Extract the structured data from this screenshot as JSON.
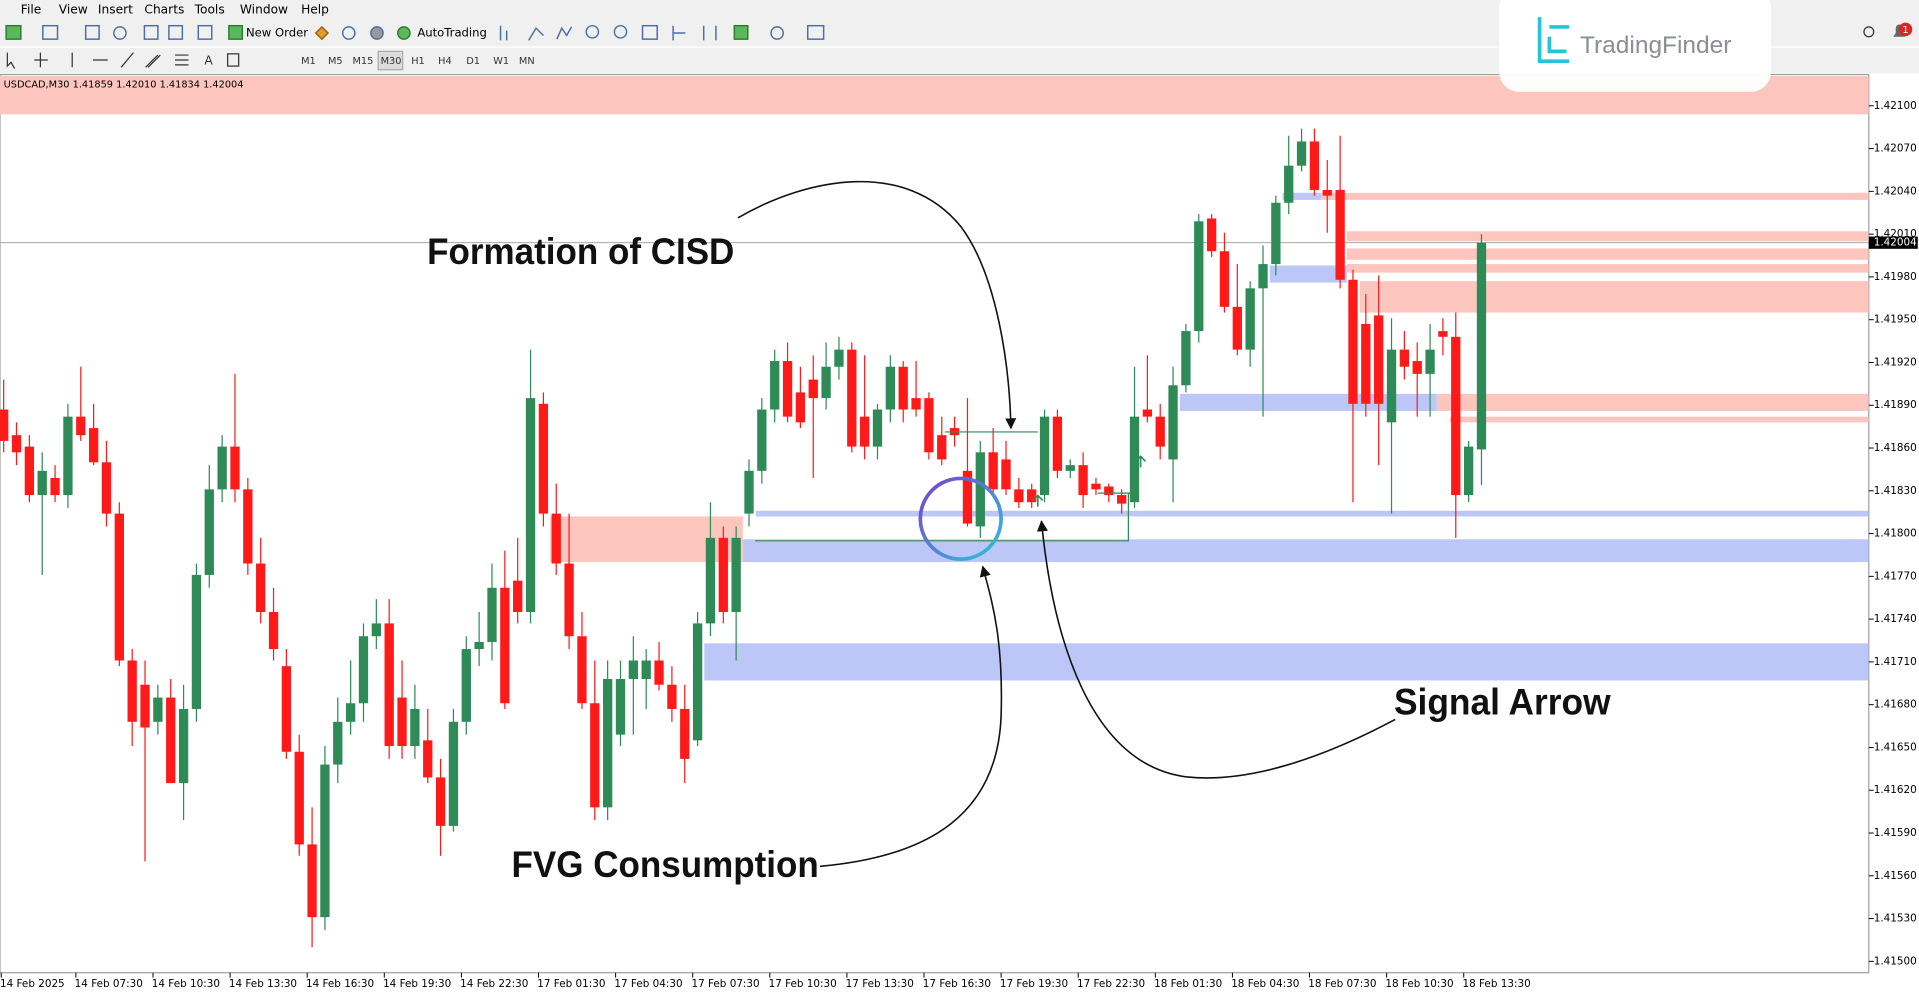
{
  "menu": [
    "File",
    "View",
    "Insert",
    "Charts",
    "Tools",
    "Window",
    "Help"
  ],
  "toolbar": {
    "new_order": "New Order",
    "autotrading": "AutoTrading",
    "timeframes": [
      "M1",
      "M5",
      "M15",
      "M30",
      "H1",
      "H4",
      "D1",
      "W1",
      "MN"
    ]
  },
  "logo": "TradingFinder",
  "notification_count": 1,
  "chart_data": {
    "type": "candlestick",
    "symbol_info": "USDCAD,M30  1.41859 1.42010 1.41834 1.42004",
    "up_color": "#2e8b57",
    "down_color": "#ff1a1a",
    "candles": {
      "open": [
        1.41887,
        1.41869,
        1.41861,
        1.41827,
        1.41839,
        1.41827,
        1.41882,
        1.41874,
        1.4185,
        1.41814,
        1.41711,
        1.41694,
        1.41668,
        1.41685,
        1.41625,
        1.41677,
        1.41771,
        1.41831,
        1.41861,
        1.41831,
        1.41779,
        1.41745,
        1.41707,
        1.41647,
        1.41582,
        1.41531,
        1.41638,
        1.41668,
        1.41681,
        1.41728,
        1.41737,
        1.41685,
        1.41651,
        1.41655,
        1.41629,
        1.41595,
        1.41668,
        1.41719,
        1.41724,
        1.41762,
        1.41767,
        1.41745,
        1.41891,
        1.41814,
        1.41779,
        1.41728,
        1.41681,
        1.41608,
        1.41659,
        1.41698,
        1.41698,
        1.41711,
        1.41694,
        1.41677,
        1.41655,
        1.41737,
        1.41797,
        1.41745,
        1.41814,
        1.41844,
        1.41887,
        1.41921,
        1.41899,
        1.41908,
        1.41895,
        1.41917,
        1.41929,
        1.41882,
        1.41861,
        1.41887,
        1.41917,
        1.41895,
        1.41895,
        1.41869,
        1.41874,
        1.41844,
        1.41805,
        1.41857,
        1.41852,
        1.41831,
        1.41831,
        1.41827,
        1.41882,
        1.41844,
        1.41848,
        1.41835,
        1.41833,
        1.41827,
        1.41822,
        1.41887,
        1.41882,
        1.41852,
        1.41904,
        1.41942,
        1.42021,
        1.41998,
        1.41959,
        1.41929,
        1.41972,
        1.41989,
        1.42032,
        1.42058,
        1.42075,
        1.42041,
        1.42041,
        1.41978,
        1.41947,
        1.41953,
        1.41878,
        1.41929,
        1.41921,
        1.41912,
        1.41942,
        1.41938,
        1.41827,
        1.41859
      ],
      "high": [
        1.41908,
        1.41878,
        1.41869,
        1.41857,
        1.41848,
        1.41891,
        1.41917,
        1.41891,
        1.41865,
        1.41822,
        1.41719,
        1.41711,
        1.41694,
        1.41698,
        1.41694,
        1.41779,
        1.41848,
        1.41869,
        1.41912,
        1.41839,
        1.41797,
        1.41762,
        1.41719,
        1.41659,
        1.41608,
        1.41651,
        1.41685,
        1.41711,
        1.41737,
        1.41754,
        1.41754,
        1.41711,
        1.41694,
        1.41677,
        1.41642,
        1.41677,
        1.41728,
        1.41745,
        1.41779,
        1.41788,
        1.41797,
        1.41929,
        1.41899,
        1.41835,
        1.41814,
        1.41745,
        1.41711,
        1.41711,
        1.41711,
        1.41728,
        1.41719,
        1.41724,
        1.41707,
        1.41694,
        1.41745,
        1.41822,
        1.41805,
        1.41805,
        1.41852,
        1.41895,
        1.41929,
        1.41934,
        1.41917,
        1.41925,
        1.41934,
        1.41938,
        1.41934,
        1.41925,
        1.41891,
        1.41925,
        1.41921,
        1.41921,
        1.41899,
        1.41882,
        1.41882,
        1.41895,
        1.41865,
        1.41874,
        1.41865,
        1.41839,
        1.41835,
        1.41887,
        1.41887,
        1.41852,
        1.41857,
        1.41839,
        1.41835,
        1.41831,
        1.41917,
        1.41925,
        1.41891,
        1.41917,
        1.41947,
        1.42024,
        1.42024,
        1.42011,
        1.41989,
        1.41977,
        1.42002,
        1.42037,
        1.42079,
        1.42084,
        1.42084,
        1.42062,
        1.42079,
        1.41985,
        1.41968,
        1.41981,
        1.41951,
        1.41942,
        1.41934,
        1.41947,
        1.41951,
        1.41955,
        1.41865,
        1.4201
      ],
      "low": [
        1.41857,
        1.41848,
        1.41822,
        1.41771,
        1.41822,
        1.41818,
        1.41865,
        1.41848,
        1.41805,
        1.41707,
        1.41651,
        1.4157,
        1.41659,
        1.41625,
        1.41599,
        1.41668,
        1.41762,
        1.41822,
        1.41822,
        1.41771,
        1.41737,
        1.41711,
        1.41642,
        1.41574,
        1.4151,
        1.41522,
        1.41625,
        1.41659,
        1.41668,
        1.41719,
        1.41642,
        1.41642,
        1.41642,
        1.41625,
        1.41574,
        1.41591,
        1.41659,
        1.41707,
        1.41711,
        1.41677,
        1.41737,
        1.41737,
        1.41805,
        1.41771,
        1.41719,
        1.41677,
        1.41599,
        1.41599,
        1.41651,
        1.41659,
        1.41677,
        1.4169,
        1.41668,
        1.41625,
        1.41651,
        1.41728,
        1.41737,
        1.41711,
        1.41805,
        1.41835,
        1.41878,
        1.41878,
        1.41874,
        1.41839,
        1.41887,
        1.41908,
        1.41857,
        1.41852,
        1.41852,
        1.41878,
        1.41878,
        1.41882,
        1.41852,
        1.41848,
        1.41861,
        1.41805,
        1.41797,
        1.41827,
        1.41827,
        1.41818,
        1.41818,
        1.41822,
        1.41839,
        1.41839,
        1.41818,
        1.41827,
        1.41822,
        1.41814,
        1.41818,
        1.41878,
        1.41852,
        1.41822,
        1.41899,
        1.41934,
        1.41994,
        1.41955,
        1.41925,
        1.41917,
        1.41882,
        1.41981,
        1.42024,
        1.42054,
        1.42037,
        1.42011,
        1.41972,
        1.41822,
        1.41882,
        1.41848,
        1.41814,
        1.41908,
        1.41882,
        1.41882,
        1.41925,
        1.41797,
        1.41822,
        1.41834
      ],
      "close": [
        1.41865,
        1.41857,
        1.41827,
        1.41844,
        1.41827,
        1.41882,
        1.41869,
        1.4185,
        1.41814,
        1.41711,
        1.41668,
        1.41664,
        1.41685,
        1.41625,
        1.41677,
        1.41771,
        1.41831,
        1.41861,
        1.41831,
        1.41779,
        1.41745,
        1.41719,
        1.41647,
        1.41582,
        1.41531,
        1.41638,
        1.41668,
        1.41681,
        1.41728,
        1.41737,
        1.41651,
        1.41651,
        1.41677,
        1.41629,
        1.41595,
        1.41668,
        1.41719,
        1.41724,
        1.41762,
        1.41681,
        1.41745,
        1.41895,
        1.41814,
        1.41779,
        1.41728,
        1.41681,
        1.41608,
        1.41698,
        1.41698,
        1.41711,
        1.41711,
        1.41694,
        1.41677,
        1.41642,
        1.41737,
        1.41797,
        1.41745,
        1.41797,
        1.41844,
        1.41887,
        1.41921,
        1.41882,
        1.41878,
        1.41895,
        1.41917,
        1.41929,
        1.41861,
        1.41861,
        1.41887,
        1.41917,
        1.41887,
        1.41887,
        1.41857,
        1.41852,
        1.41869,
        1.41807,
        1.41857,
        1.41831,
        1.41831,
        1.41822,
        1.41822,
        1.41882,
        1.41844,
        1.41848,
        1.41827,
        1.41831,
        1.41827,
        1.41821,
        1.41882,
        1.41882,
        1.41861,
        1.41904,
        1.41942,
        1.42019,
        1.41998,
        1.41959,
        1.41929,
        1.41972,
        1.41989,
        1.42032,
        1.42058,
        1.42075,
        1.42041,
        1.42037,
        1.41978,
        1.41891,
        1.41891,
        1.41891,
        1.41929,
        1.41917,
        1.41912,
        1.41929,
        1.41938,
        1.41827,
        1.41861,
        1.42004
      ]
    },
    "ylim": [
      1.41492,
      1.42121
    ],
    "yticks": [
      {
        "value": 1.421,
        "label": "1.42100"
      },
      {
        "value": 1.4207,
        "label": "1.42070"
      },
      {
        "value": 1.4204,
        "label": "1.42040"
      },
      {
        "value": 1.4201,
        "label": "1.42010"
      },
      {
        "value": 1.4198,
        "label": "1.41980"
      },
      {
        "value": 1.4195,
        "label": "1.41950"
      },
      {
        "value": 1.4192,
        "label": "1.41920"
      },
      {
        "value": 1.4189,
        "label": "1.41890"
      },
      {
        "value": 1.4186,
        "label": "1.41860"
      },
      {
        "value": 1.4183,
        "label": "1.41830"
      },
      {
        "value": 1.418,
        "label": "1.41800"
      },
      {
        "value": 1.4177,
        "label": "1.41770"
      },
      {
        "value": 1.4174,
        "label": "1.41740"
      },
      {
        "value": 1.4171,
        "label": "1.41710"
      },
      {
        "value": 1.4168,
        "label": "1.41680"
      },
      {
        "value": 1.4165,
        "label": "1.41650"
      },
      {
        "value": 1.4162,
        "label": "1.41620"
      },
      {
        "value": 1.4159,
        "label": "1.41590"
      },
      {
        "value": 1.4156,
        "label": "1.41560"
      },
      {
        "value": 1.4153,
        "label": "1.41530"
      },
      {
        "value": 1.415,
        "label": "1.41500"
      }
    ],
    "xtick_labels": [
      "14 Feb 2025",
      "14 Feb 07:30",
      "14 Feb 10:30",
      "14 Feb 13:30",
      "14 Feb 16:30",
      "14 Feb 19:30",
      "14 Feb 22:30",
      "17 Feb 01:30",
      "17 Feb 04:30",
      "17 Feb 07:30",
      "17 Feb 10:30",
      "17 Feb 13:30",
      "17 Feb 16:30",
      "17 Feb 19:30",
      "17 Feb 22:30",
      "18 Feb 01:30",
      "18 Feb 04:30",
      "18 Feb 07:30",
      "18 Feb 10:30",
      "18 Feb 13:30"
    ],
    "last_price": {
      "value": 1.42004,
      "label": "1.42004"
    },
    "zones": [
      {
        "top": 1.42121,
        "bottom": 1.42094,
        "from": 0,
        "color": "#fcc6bf"
      },
      {
        "top": 1.42039,
        "bottom": 1.42034,
        "from": 100,
        "to": 103,
        "color": "#bcc6f7"
      },
      {
        "top": 1.42039,
        "bottom": 1.42034,
        "from": 103,
        "color": "#fcc6bf"
      },
      {
        "top": 1.42012,
        "bottom": 1.42005,
        "from": 105,
        "color": "#fcc6bf"
      },
      {
        "top": 1.42,
        "bottom": 1.41992,
        "from": 105,
        "color": "#fcc6bf"
      },
      {
        "top": 1.41989,
        "bottom": 1.41983,
        "from": 105,
        "color": "#fcc6bf"
      },
      {
        "top": 1.41977,
        "bottom": 1.41955,
        "from": 106,
        "color": "#fcc6bf"
      },
      {
        "top": 1.41988,
        "bottom": 1.41976,
        "from": 99,
        "to": 105,
        "color": "#bcc6f7"
      },
      {
        "top": 1.41898,
        "bottom": 1.41886,
        "from": 92,
        "to": 112,
        "color": "#bcc6f7"
      },
      {
        "top": 1.41898,
        "bottom": 1.41886,
        "from": 112,
        "color": "#fcc6bf"
      },
      {
        "top": 1.41882,
        "bottom": 1.41878,
        "from": 113,
        "color": "#fcc6bf"
      },
      {
        "top": 1.41816,
        "bottom": 1.41812,
        "from": 59,
        "color": "#bcc6f7"
      },
      {
        "top": 1.41796,
        "bottom": 1.4178,
        "from": 58,
        "color": "#bcc6f7"
      },
      {
        "top": 1.41812,
        "bottom": 1.4178,
        "from": 43,
        "to": 58,
        "color": "#fcc6bf"
      },
      {
        "top": 1.41723,
        "bottom": 1.41697,
        "from": 55,
        "color": "#bcc6f7"
      }
    ],
    "annotations": [
      "Formation of CISD",
      "FVG Consumption",
      "Signal Arrow"
    ]
  }
}
